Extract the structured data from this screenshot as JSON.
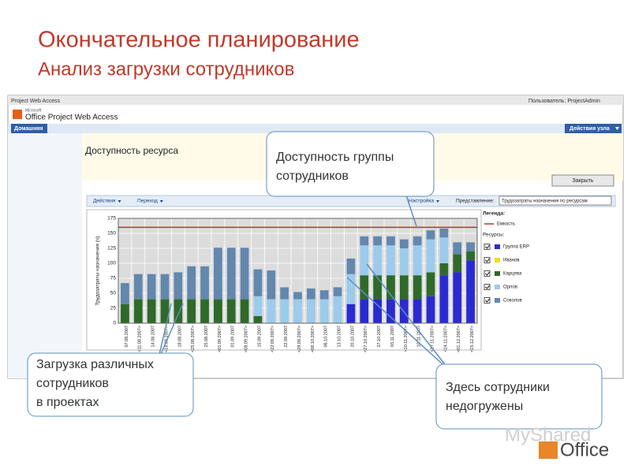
{
  "slide": {
    "title": "Окончательное планирование",
    "subtitle": "Анализ загрузки сотрудников"
  },
  "ui": {
    "app_name": "Project Web Access",
    "user": "Пользователь: ProjectAdmin",
    "logo_small": "Microsoft",
    "logo": "Office Project Web Access",
    "tab_home": "Домашняя",
    "site_actions": "Действия узла",
    "page_title": "Доступность ресурса",
    "close_button": "Закрыть",
    "toolbar": [
      "Действия",
      "Переход",
      "Настройка"
    ],
    "view_label": "Представление:",
    "view_value": "Трудозатраты назначения по ресурсам",
    "legend_title": "Легенда:",
    "resources_title": "Ресурсы:"
  },
  "chart_data": {
    "type": "stacked_bar",
    "y_label": "Трудозатраты назначения (ч)",
    "ylim": [
      0,
      175
    ],
    "yticks": [
      0,
      25,
      50,
      75,
      100,
      125,
      150,
      175
    ],
    "grid": true,
    "capacity": {
      "name": "Емкость",
      "value": 160,
      "color": "#c0302a"
    },
    "categories": [
      "07.08.2007",
      "<11.08.2007>",
      "14.08.2007",
      "<18.08.2007>",
      "18.08.2007",
      "<25.08.2007>",
      "25.08.2007",
      "<01.09.2007>",
      "01.09.2007",
      "<08.09.2007>",
      "15.09.2007",
      "<22.09.2007>",
      "22.09.2007",
      "<29.09.2007>",
      "<06.10.2007>",
      "06.10.2007",
      "13.10.2007",
      "20.10.2007",
      "<27.10.2007>",
      "27.10.2007",
      "03.11.2007",
      "<10.11.2007>",
      "10.11.2007",
      "<17.11.2007>",
      "<24.11.2007>",
      "<01.12.2007>",
      "<15.12.2007>"
    ],
    "series": [
      {
        "name": "Группа ERP",
        "color": "#2a2ad0",
        "values": [
          0,
          0,
          0,
          0,
          0,
          0,
          0,
          0,
          0,
          0,
          0,
          0,
          0,
          0,
          0,
          0,
          0,
          32,
          40,
          40,
          40,
          40,
          40,
          45,
          80,
          85,
          105
        ]
      },
      {
        "name": "Иванов",
        "color": "#f0e020",
        "values": [
          0,
          0,
          0,
          0,
          0,
          0,
          0,
          0,
          0,
          0,
          0,
          0,
          0,
          0,
          0,
          0,
          0,
          0,
          0,
          0,
          0,
          0,
          0,
          0,
          0,
          0,
          0
        ]
      },
      {
        "name": "Карцева",
        "color": "#2f6a2a",
        "values": [
          32,
          40,
          40,
          40,
          40,
          40,
          40,
          40,
          40,
          40,
          12,
          0,
          0,
          0,
          0,
          0,
          0,
          0,
          40,
          40,
          40,
          40,
          40,
          40,
          20,
          30,
          15
        ]
      },
      {
        "name": "Орлов",
        "color": "#9ccbec",
        "values": [
          0,
          0,
          0,
          0,
          0,
          0,
          0,
          0,
          0,
          0,
          33,
          40,
          40,
          40,
          40,
          40,
          45,
          50,
          50,
          50,
          50,
          45,
          50,
          55,
          43,
          0,
          0
        ]
      },
      {
        "name": "Соколов",
        "color": "#6387ad",
        "values": [
          35,
          42,
          42,
          42,
          45,
          55,
          55,
          86,
          86,
          86,
          45,
          48,
          20,
          12,
          18,
          15,
          15,
          26,
          15,
          15,
          15,
          15,
          15,
          15,
          15,
          20,
          15
        ]
      }
    ]
  },
  "callouts": [
    "Доступность группы сотрудников",
    "Загрузка различных сотрудников в проектах",
    "Здесь сотрудники недогружены"
  ],
  "watermark": [
    "MyShared",
    "Office"
  ]
}
